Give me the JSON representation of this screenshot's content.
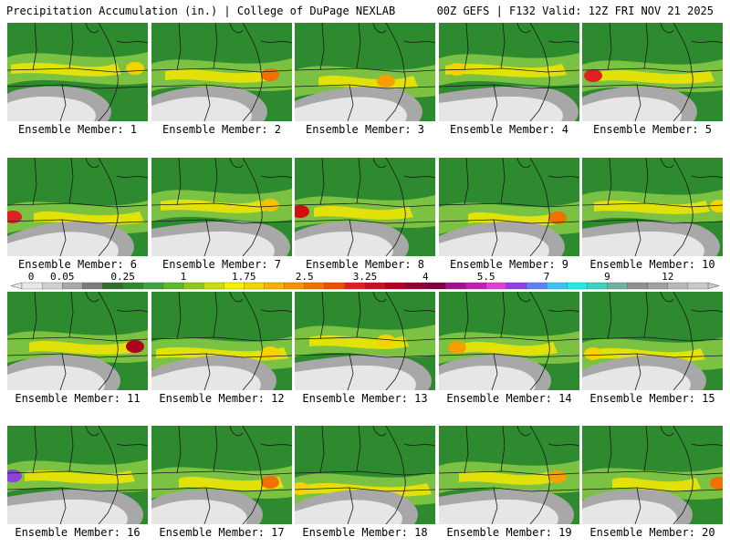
{
  "header": {
    "title_left": "Precipitation Accumulation (in.) | College of DuPage NEXLAB",
    "title_right": "00Z GEFS | F132 Valid: 12Z FRI NOV 21 2025"
  },
  "caption_prefix": "Ensemble Member: ",
  "members": [
    {
      "label": "Ensemble Member: 1",
      "max_color": "#f5d200"
    },
    {
      "label": "Ensemble Member: 2",
      "max_color": "#f07000"
    },
    {
      "label": "Ensemble Member: 3",
      "max_color": "#f5a000"
    },
    {
      "label": "Ensemble Member: 4",
      "max_color": "#f5d200"
    },
    {
      "label": "Ensemble Member: 5",
      "max_color": "#e02020"
    },
    {
      "label": "Ensemble Member: 6",
      "max_color": "#e02020"
    },
    {
      "label": "Ensemble Member: 7",
      "max_color": "#f5c000"
    },
    {
      "label": "Ensemble Member: 8",
      "max_color": "#d01010"
    },
    {
      "label": "Ensemble Member: 9",
      "max_color": "#f07000"
    },
    {
      "label": "Ensemble Member: 10",
      "max_color": "#f5d200"
    },
    {
      "label": "Ensemble Member: 11",
      "max_color": "#b00020"
    },
    {
      "label": "Ensemble Member: 12",
      "max_color": "#f5d200"
    },
    {
      "label": "Ensemble Member: 13",
      "max_color": "#f5d200"
    },
    {
      "label": "Ensemble Member: 14",
      "max_color": "#f5a000"
    },
    {
      "label": "Ensemble Member: 15",
      "max_color": "#f5d200"
    },
    {
      "label": "Ensemble Member: 16",
      "max_color": "#9040e0"
    },
    {
      "label": "Ensemble Member: 17",
      "max_color": "#f07000"
    },
    {
      "label": "Ensemble Member: 18",
      "max_color": "#f5d200"
    },
    {
      "label": "Ensemble Member: 19",
      "max_color": "#f5a000"
    },
    {
      "label": "Ensemble Member: 20",
      "max_color": "#f07000"
    }
  ],
  "colorbar": {
    "labels": [
      "0",
      "0.05",
      "0.25",
      "1",
      "1.75",
      "2.5",
      "3.25",
      "4",
      "5.5",
      "7",
      "9",
      "12"
    ],
    "colors": [
      "#e8e8e8",
      "#d0d0d0",
      "#a8a8a8",
      "#7a7a7a",
      "#2f6e2f",
      "#2e8a2e",
      "#3fa33f",
      "#5bb82f",
      "#8cc820",
      "#c8dc10",
      "#f5f000",
      "#f5d200",
      "#f5b000",
      "#f59000",
      "#f07000",
      "#e85000",
      "#e02020",
      "#c81020",
      "#b00020",
      "#900030",
      "#7a0040",
      "#a01090",
      "#c020b0",
      "#e040d0",
      "#9040e0",
      "#6080f0",
      "#40c0f0",
      "#20e8e8",
      "#40d0c0",
      "#70b0a0",
      "#909090",
      "#a0a0a0",
      "#b8b8b8",
      "#c8c8c8"
    ],
    "label_positions": [
      0,
      2,
      5,
      8,
      11,
      14,
      17,
      20,
      23,
      26,
      29,
      32
    ]
  },
  "palette": {
    "green_dark": "#2e8a2e",
    "green_light": "#7cc242",
    "yellow": "#f5e600",
    "gray_light": "#e6e6e6",
    "gray_mid": "#a8a8a8",
    "outline": "#1a1a1a"
  }
}
